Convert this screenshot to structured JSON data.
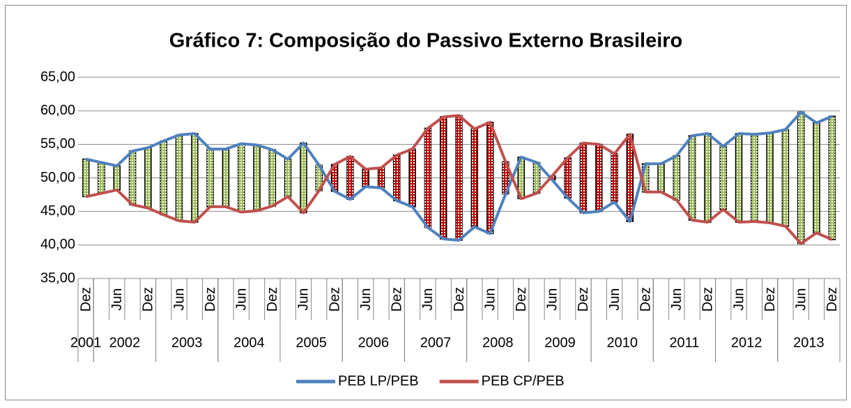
{
  "chart_data": {
    "type": "line",
    "title": "Gráfico 7: Composição do Passivo Externo Brasileiro",
    "categories": [
      "Dez",
      null,
      "Jun",
      null,
      "Dez",
      null,
      "Jun",
      null,
      "Dez",
      null,
      "Jun",
      null,
      "Dez",
      null,
      "Jun",
      null,
      "Dez",
      null,
      "Jun",
      null,
      "Dez",
      null,
      "Jun",
      null,
      "Dez",
      null,
      "Jun",
      null,
      "Dez",
      null,
      "Jun",
      null,
      "Dez",
      null,
      "Jun",
      null,
      "Dez",
      null,
      "Jun",
      null,
      "Dez",
      null,
      "Jun",
      null,
      "Dez",
      null,
      "Jun",
      null,
      "Dez"
    ],
    "years": [
      "2001",
      "2002",
      "2003",
      "2004",
      "2005",
      "2006",
      "2007",
      "2008",
      "2009",
      "2010",
      "2011",
      "2012",
      "2013"
    ],
    "series": [
      {
        "name": "PEB LP/PEB",
        "color": "#4f81bd",
        "values": [
          52.8,
          52.3,
          51.8,
          54.0,
          54.5,
          55.5,
          56.4,
          56.6,
          54.3,
          54.3,
          55.1,
          54.9,
          54.2,
          52.8,
          55.2,
          51.9,
          48.0,
          46.8,
          48.7,
          48.5,
          46.6,
          45.7,
          42.6,
          40.9,
          40.7,
          42.7,
          41.7,
          47.6,
          53.1,
          52.3,
          49.7,
          47.0,
          44.8,
          45.0,
          46.4,
          43.5,
          52.1,
          52.1,
          53.3,
          56.3,
          56.6,
          54.7,
          56.6,
          56.5,
          56.7,
          57.2,
          59.8,
          58.2,
          59.2
        ]
      },
      {
        "name": "PEB CP/PEB",
        "color": "#c0504d",
        "values": [
          47.2,
          47.7,
          48.2,
          46.0,
          45.5,
          44.5,
          43.6,
          43.4,
          45.7,
          45.7,
          44.9,
          45.1,
          45.8,
          47.2,
          44.8,
          48.1,
          52.0,
          53.2,
          51.3,
          51.5,
          53.4,
          54.3,
          57.4,
          59.1,
          59.3,
          57.3,
          58.3,
          52.4,
          46.9,
          47.7,
          50.3,
          53.0,
          55.2,
          55.0,
          53.6,
          56.5,
          47.9,
          47.9,
          46.7,
          43.7,
          43.4,
          45.3,
          43.4,
          43.5,
          43.3,
          42.8,
          40.2,
          41.8,
          40.8
        ]
      }
    ],
    "up_bar_color": "#9bbb59",
    "down_bar_color": "#c00000",
    "ylim": [
      35,
      65
    ],
    "yticks": [
      {
        "value": 35,
        "label": "35,00"
      },
      {
        "value": 40,
        "label": "40,00"
      },
      {
        "value": 45,
        "label": "45,00"
      },
      {
        "value": 50,
        "label": "50,00"
      },
      {
        "value": 55,
        "label": "55,00"
      },
      {
        "value": 60,
        "label": "60,00"
      },
      {
        "value": 65,
        "label": "65,00"
      }
    ],
    "grid": true,
    "legend": "bottom"
  }
}
